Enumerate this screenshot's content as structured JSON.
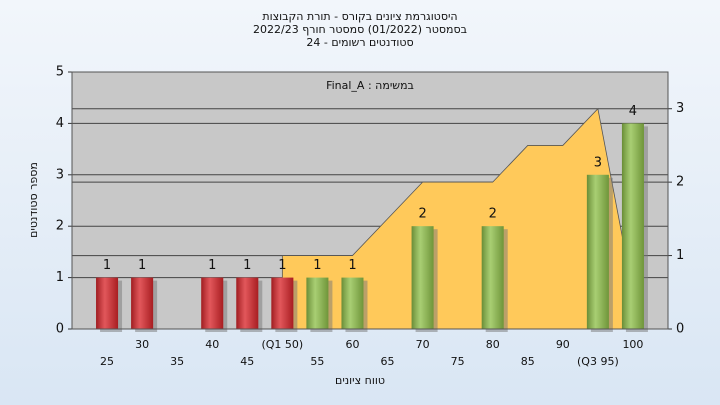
{
  "chart_data": {
    "type": "bar",
    "title": "היסטוגרמת ציונים בקורס - תורת הקבוצות",
    "subtitle": "בסמסטר  (01/2022)  סמסטר חורף 2022/23",
    "subtitle2": "סטודנטים רשומים - 24",
    "annotation": "במשימה : Final_A",
    "x_label": "טווח ציונים",
    "y_label": "מספר סטודנטים",
    "categories": [
      "25",
      "30",
      "35",
      "40",
      "45",
      "(Q1 50)",
      "55",
      "60",
      "65",
      "70",
      "75",
      "80",
      "85",
      "90",
      "(Q3 95)",
      "100"
    ],
    "series": [
      {
        "type": "area",
        "axis": "y2",
        "color": "#ffc95a",
        "values": [
          null,
          null,
          null,
          null,
          null,
          1,
          1,
          1,
          1.5,
          2,
          2,
          2,
          2.5,
          2.5,
          3,
          0.5
        ]
      },
      {
        "type": "bar",
        "values": [
          1,
          1,
          0,
          1,
          1,
          1,
          1,
          1,
          0,
          2,
          0,
          2,
          0,
          0,
          3,
          4
        ],
        "colors": [
          "#d9262b",
          "#d9262b",
          "#d9262b",
          "#d9262b",
          "#d9262b",
          "#d9262b",
          "#8fc04a",
          "#8fc04a",
          "#8fc04a",
          "#8fc04a",
          "#8fc04a",
          "#8fc04a",
          "#8fc04a",
          "#8fc04a",
          "#8fc04a",
          "#8fc04a"
        ]
      }
    ],
    "ylim": [
      0,
      5
    ],
    "yticks": [
      0,
      1,
      2,
      3,
      4,
      5
    ],
    "y2lim": [
      0,
      3.5
    ],
    "y2ticks": [
      0,
      1,
      2,
      3
    ],
    "grid": true
  }
}
